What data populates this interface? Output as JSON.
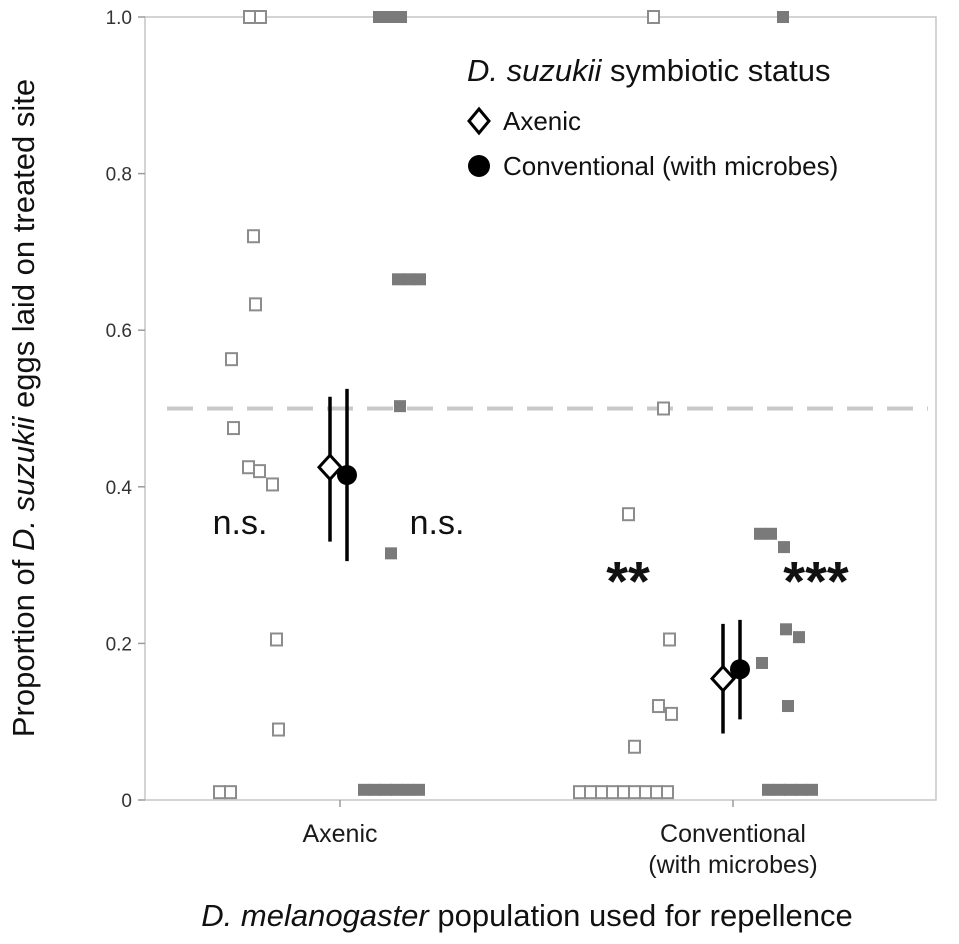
{
  "chart_data": {
    "type": "scatter",
    "ylabel": "Proportion of D. suzukii eggs laid on treated site",
    "ylabel_parts": [
      "Proportion of ",
      "D. suzukii",
      " eggs laid on treated site"
    ],
    "xlabel": "D. melanogaster population used for repellence",
    "xlabel_parts": [
      "D. melanogaster",
      " population used for repellence"
    ],
    "ylim": [
      0,
      1.0
    ],
    "yticks": [
      "0",
      "0.2",
      "0.4",
      "0.6",
      "0.8",
      "1.0"
    ],
    "reference_line": 0.5,
    "categories": [
      {
        "label_lines": [
          "Axenic"
        ]
      },
      {
        "label_lines": [
          "Conventional",
          "(with microbes)"
        ]
      }
    ],
    "legend": {
      "title": "D. suzukii symbiotic status",
      "title_parts": [
        "D. suzukii",
        " symbiotic status"
      ],
      "position": "top-right",
      "entries": [
        "Axenic",
        "Conventional (with microbes)"
      ]
    },
    "series": [
      {
        "name": "Axenic",
        "marker": "open-square",
        "groups": [
          {
            "category": 0,
            "values": [
              1.0,
              1.0,
              0.72,
              0.633,
              0.563,
              0.475,
              0.42,
              0.425,
              0.403,
              0.205,
              0.09,
              0.01,
              0.01
            ],
            "mean": 0.425,
            "ci": [
              0.33,
              0.515
            ],
            "annotation": "n.s."
          },
          {
            "category": 1,
            "values": [
              1.0,
              0.5,
              0.365,
              0.205,
              0.12,
              0.11,
              0.068,
              0.01,
              0.01,
              0.01,
              0.01,
              0.01,
              0.01,
              0.01,
              0.01,
              0.01
            ],
            "mean": 0.155,
            "ci": [
              0.085,
              0.225
            ],
            "annotation": "**"
          }
        ]
      },
      {
        "name": "Conventional (with microbes)",
        "marker": "filled-square",
        "groups": [
          {
            "category": 0,
            "values": [
              1.0,
              1.0,
              1.0,
              0.665,
              0.665,
              0.665,
              0.503,
              0.315,
              0.013,
              0.013,
              0.013,
              0.013,
              0.013,
              0.013
            ],
            "mean": 0.415,
            "ci": [
              0.305,
              0.525
            ],
            "annotation": "n.s."
          },
          {
            "category": 1,
            "values": [
              1.0,
              0.34,
              0.34,
              0.323,
              0.218,
              0.208,
              0.175,
              0.12,
              0.013,
              0.013,
              0.013,
              0.013,
              0.013
            ],
            "mean": 0.167,
            "ci": [
              0.103,
              0.23
            ],
            "annotation": "***"
          }
        ]
      }
    ],
    "colors": {
      "open_marker": "#8c8c8c",
      "filled_marker": "#7a7a7a",
      "mean_marker": "#000000",
      "reference_line": "#c8c8c8",
      "frame": "#c6c6c6"
    }
  }
}
